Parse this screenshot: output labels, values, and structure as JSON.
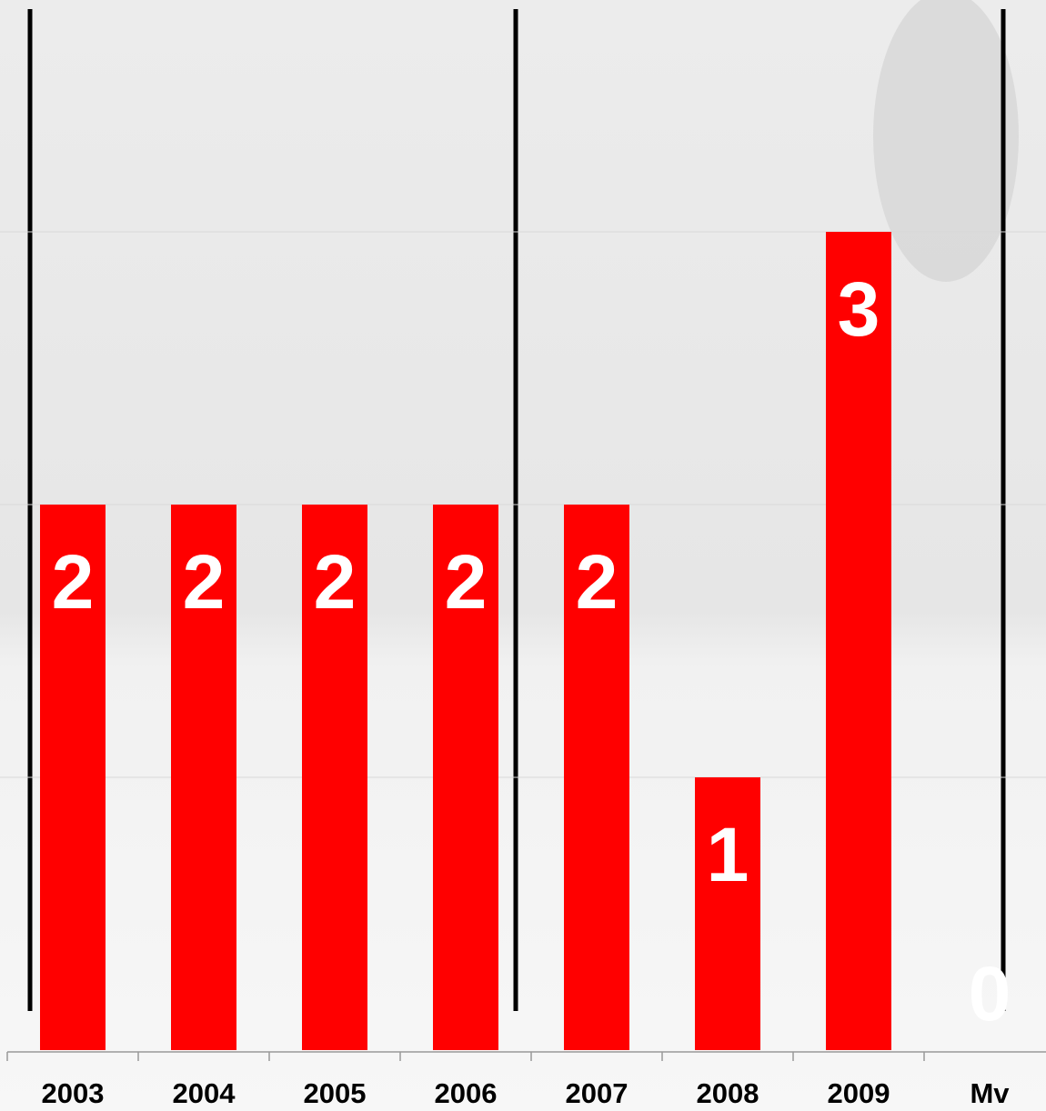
{
  "chart_data": {
    "type": "bar",
    "categories": [
      "2003",
      "2004",
      "2005",
      "2006",
      "2007",
      "2008",
      "2009",
      "Mv"
    ],
    "values": [
      2,
      2,
      2,
      2,
      2,
      1,
      3,
      0
    ],
    "color": "#ff0000",
    "ylim": [
      0,
      3.85
    ],
    "yticks": [
      1,
      2,
      3
    ],
    "grid": true
  }
}
